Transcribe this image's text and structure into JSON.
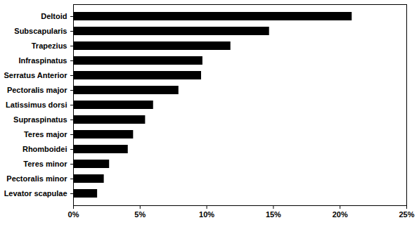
{
  "chart_data": {
    "type": "bar",
    "orientation": "horizontal",
    "color": "#000000",
    "categories": [
      "Deltoid",
      "Subscapularis",
      "Trapezius",
      "Infraspinatus",
      "Serratus Anterior",
      "Pectoralis major",
      "Latissimus dorsi",
      "Supraspinatus",
      "Teres major",
      "Rhomboidei",
      "Teres minor",
      "Pectoralis minor",
      "Levator scapulae"
    ],
    "values": [
      20.9,
      14.7,
      11.8,
      9.7,
      9.6,
      7.9,
      6.0,
      5.4,
      4.5,
      4.1,
      2.7,
      2.3,
      1.8
    ],
    "xlim": [
      0,
      25
    ],
    "xticks": [
      {
        "value": 0,
        "label": "0%"
      },
      {
        "value": 5,
        "label": "5%"
      },
      {
        "value": 10,
        "label": "10%"
      },
      {
        "value": 15,
        "label": "15%"
      },
      {
        "value": 20,
        "label": "20%"
      },
      {
        "value": 25,
        "label": "25%"
      }
    ],
    "grid": false
  }
}
